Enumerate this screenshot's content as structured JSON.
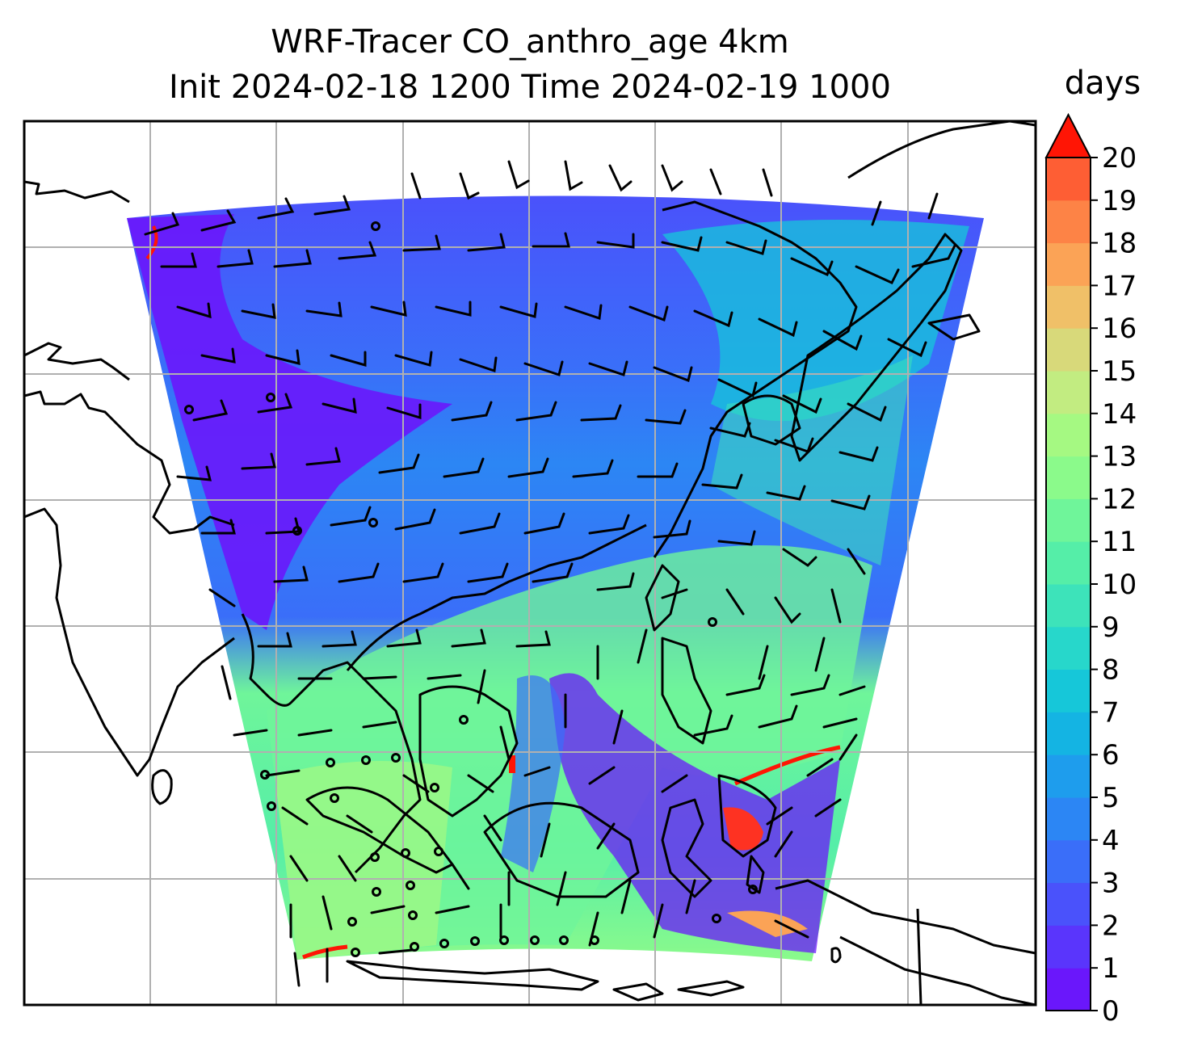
{
  "title_line1": "WRF-Tracer CO_anthro_age 4km",
  "title_line2": "Init 2024-02-18 1200 Time 2024-02-19 1000",
  "colorbar": {
    "label": "days",
    "min": 0,
    "max": 20,
    "extend": "max",
    "ticks": [
      "0",
      "1",
      "2",
      "3",
      "4",
      "5",
      "6",
      "7",
      "8",
      "9",
      "10",
      "11",
      "12",
      "13",
      "14",
      "15",
      "16",
      "17",
      "18",
      "19",
      "20"
    ],
    "colors": [
      "#6a17fb",
      "#5a35fc",
      "#4a52fb",
      "#3a6ef9",
      "#2c86f4",
      "#1e9ded",
      "#14b4e3",
      "#16c7d9",
      "#27d7cb",
      "#3de3ba",
      "#55eea8",
      "#6ff59a",
      "#8bfa8b",
      "#a5f982",
      "#c2ec81",
      "#d8d97a",
      "#f0c068",
      "#fba356",
      "#fd8346",
      "#fe5e34",
      "#fe3222"
    ],
    "extend_color": "#ff1505"
  },
  "map": {
    "gridlines": true,
    "field_name": "CO_anthro_age",
    "overlay": "wind barbs"
  }
}
